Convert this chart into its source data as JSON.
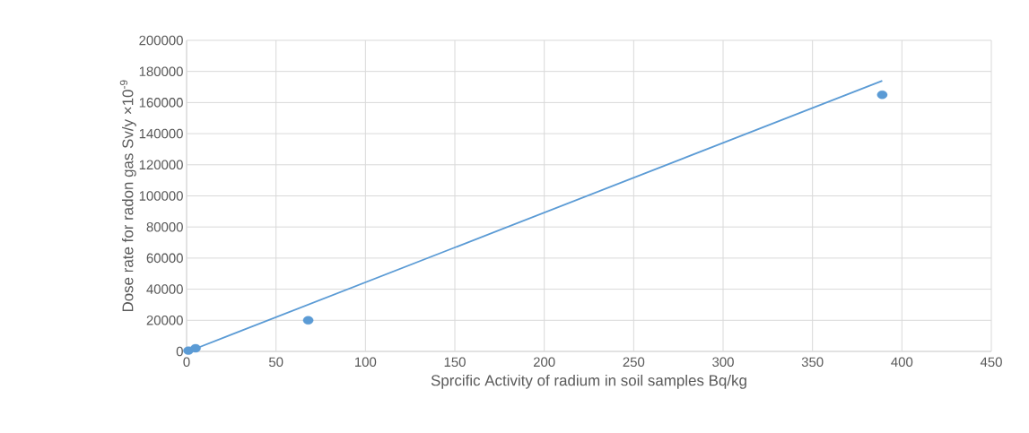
{
  "chart_data": {
    "type": "scatter",
    "xlabel": "Sprcific Activity of radium in soil samples Bq/kg",
    "ylabel": "Dose rate for radon gas  Sv/y ×10$^{-9}$",
    "series": [
      {
        "color": "#5b9bd5",
        "marker": "circle",
        "x": [
          1,
          5,
          68,
          389
        ],
        "values": [
          500,
          2000,
          20000,
          165000
        ]
      },
      {
        "type": "line",
        "color": "#5b9bd5",
        "marker": "none",
        "x": [
          1,
          389
        ],
        "values": [
          0,
          174000
        ]
      }
    ],
    "xlim": [
      0,
      450
    ],
    "xticks": [
      0,
      50,
      100,
      150,
      200,
      250,
      300,
      350,
      400,
      450
    ],
    "ylim": [
      0,
      200000
    ],
    "yticks": [
      0,
      20000,
      40000,
      60000,
      80000,
      100000,
      120000,
      140000,
      160000,
      180000,
      200000
    ],
    "grid": true
  }
}
